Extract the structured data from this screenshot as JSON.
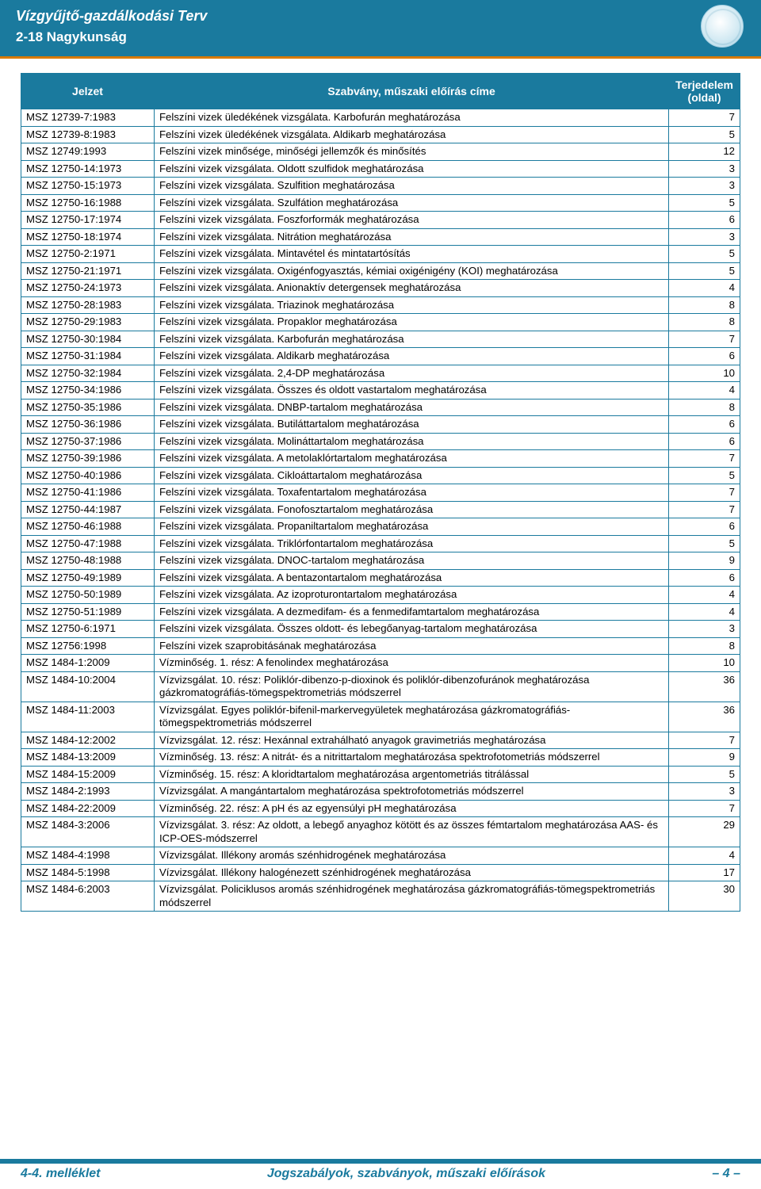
{
  "colors": {
    "primary": "#1a7a9e",
    "accent": "#d97a00",
    "text": "#000000",
    "background": "#ffffff"
  },
  "header": {
    "title": "Vízgyűjtő-gazdálkodási Terv",
    "subtitle": "2-18 Nagykunság"
  },
  "table": {
    "columns": [
      "Jelzet",
      "Szabvány, műszaki előírás címe",
      "Terjedelem (oldal)"
    ],
    "rows": [
      [
        "MSZ 12739-7:1983",
        "Felszíni vizek üledékének vizsgálata. Karbofurán meghatározása",
        "7"
      ],
      [
        "MSZ 12739-8:1983",
        "Felszíni vizek üledékének vizsgálata. Aldikarb meghatározása",
        "5"
      ],
      [
        "MSZ 12749:1993",
        "Felszíni vizek minősége, minőségi jellemzők és minősítés",
        "12"
      ],
      [
        "MSZ 12750-14:1973",
        "Felszíni vizek vizsgálata. Oldott szulfidok meghatározása",
        "3"
      ],
      [
        "MSZ 12750-15:1973",
        "Felszíni vizek vizsgálata. Szulfition meghatározása",
        "3"
      ],
      [
        "MSZ 12750-16:1988",
        "Felszíni vizek vizsgálata. Szulfátion meghatározása",
        "5"
      ],
      [
        "MSZ 12750-17:1974",
        "Felszíni vizek vizsgálata. Foszforformák meghatározása",
        "6"
      ],
      [
        "MSZ 12750-18:1974",
        "Felszíni vizek vizsgálata. Nitrátion meghatározása",
        "3"
      ],
      [
        "MSZ 12750-2:1971",
        "Felszíni vizek vizsgálata. Mintavétel és mintatartósítás",
        "5"
      ],
      [
        "MSZ 12750-21:1971",
        "Felszíni vizek vizsgálata. Oxigénfogyasztás, kémiai oxigénigény (KOI) meghatározása",
        "5"
      ],
      [
        "MSZ 12750-24:1973",
        "Felszíni vizek vizsgálata. Anionaktív detergensek meghatározása",
        "4"
      ],
      [
        "MSZ 12750-28:1983",
        "Felszíni vizek vizsgálata. Triazinok meghatározása",
        "8"
      ],
      [
        "MSZ 12750-29:1983",
        "Felszíni vizek vizsgálata. Propaklor meghatározása",
        "8"
      ],
      [
        "MSZ 12750-30:1984",
        "Felszíni vizek vizsgálata. Karbofurán meghatározása",
        "7"
      ],
      [
        "MSZ 12750-31:1984",
        "Felszíni vizek vizsgálata. Aldikarb meghatározása",
        "6"
      ],
      [
        "MSZ 12750-32:1984",
        "Felszíni vizek vizsgálata. 2,4-DP meghatározása",
        "10"
      ],
      [
        "MSZ 12750-34:1986",
        "Felszíni vizek vizsgálata. Összes és oldott vastartalom meghatározása",
        "4"
      ],
      [
        "MSZ 12750-35:1986",
        "Felszíni vizek vizsgálata. DNBP-tartalom meghatározása",
        "8"
      ],
      [
        "MSZ 12750-36:1986",
        "Felszíni vizek vizsgálata. Butiláttartalom meghatározása",
        "6"
      ],
      [
        "MSZ 12750-37:1986",
        "Felszíni vizek vizsgálata. Molináttartalom meghatározása",
        "6"
      ],
      [
        "MSZ 12750-39:1986",
        "Felszíni vizek vizsgálata. A metolaklórtartalom meghatározása",
        "7"
      ],
      [
        "MSZ 12750-40:1986",
        "Felszíni vizek vizsgálata. Cikloáttartalom meghatározása",
        "5"
      ],
      [
        "MSZ 12750-41:1986",
        "Felszíni vizek vizsgálata. Toxafentartalom meghatározása",
        "7"
      ],
      [
        "MSZ 12750-44:1987",
        "Felszíni vizek vizsgálata. Fonofosztartalom meghatározása",
        "7"
      ],
      [
        "MSZ 12750-46:1988",
        "Felszíni vizek vizsgálata. Propaniltartalom meghatározása",
        "6"
      ],
      [
        "MSZ 12750-47:1988",
        "Felszíni vizek vizsgálata. Triklórfontartalom meghatározása",
        "5"
      ],
      [
        "MSZ 12750-48:1988",
        "Felszíni vizek vizsgálata. DNOC-tartalom meghatározása",
        "9"
      ],
      [
        "MSZ 12750-49:1989",
        "Felszíni vizek vizsgálata. A bentazontartalom meghatározása",
        "6"
      ],
      [
        "MSZ 12750-50:1989",
        "Felszíni vizek vizsgálata. Az izoproturontartalom meghatározása",
        "4"
      ],
      [
        "MSZ 12750-51:1989",
        "Felszíni vizek vizsgálata. A dezmedifam- és a fenmedifamtartalom meghatározása",
        "4"
      ],
      [
        "MSZ 12750-6:1971",
        "Felszíni vizek vizsgálata. Összes oldott- és lebegőanyag-tartalom meghatározása",
        "3"
      ],
      [
        "MSZ 12756:1998",
        "Felszíni vizek szaprobitásának meghatározása",
        "8"
      ],
      [
        "MSZ 1484-1:2009",
        "Vízminőség. 1. rész: A fenolindex meghatározása",
        "10"
      ],
      [
        "MSZ 1484-10:2004",
        "Vízvizsgálat. 10. rész: Poliklór-dibenzo-p-dioxinok és poliklór-dibenzofuránok meghatározása gázkromatográfiás-tömegspektrometriás módszerrel",
        "36"
      ],
      [
        "MSZ 1484-11:2003",
        "Vízvizsgálat. Egyes poliklór-bifenil-markervegyületek meghatározása gázkromatográfiás-tömegspektrometriás módszerrel",
        "36"
      ],
      [
        "MSZ 1484-12:2002",
        "Vízvizsgálat. 12. rész: Hexánnal extrahálható anyagok gravimetriás meghatározása",
        "7"
      ],
      [
        "MSZ 1484-13:2009",
        "Vízminőség. 13. rész: A nitrát- és a nitrittartalom meghatározása spektrofotometriás módszerrel",
        "9"
      ],
      [
        "MSZ 1484-15:2009",
        "Vízminőség. 15. rész: A kloridtartalom meghatározása argentometriás titrálással",
        "5"
      ],
      [
        "MSZ 1484-2:1993",
        "Vízvizsgálat. A mangántartalom meghatározása spektrofotometriás módszerrel",
        "3"
      ],
      [
        "MSZ 1484-22:2009",
        "Vízminőség. 22. rész: A pH és az egyensúlyi pH meghatározása",
        "7"
      ],
      [
        "MSZ 1484-3:2006",
        "Vízvizsgálat. 3. rész: Az oldott, a lebegő anyaghoz kötött és az összes fémtartalom meghatározása AAS- és ICP-OES-módszerrel",
        "29"
      ],
      [
        "MSZ 1484-4:1998",
        "Vízvizsgálat. Illékony aromás szénhidrogének meghatározása",
        "4"
      ],
      [
        "MSZ 1484-5:1998",
        "Vízvizsgálat. Illékony halogénezett szénhidrogének meghatározása",
        "17"
      ],
      [
        "MSZ 1484-6:2003",
        "Vízvizsgálat. Policiklusos aromás szénhidrogének meghatározása gázkromatográfiás-tömegspektrometriás módszerrel",
        "30"
      ]
    ]
  },
  "footer": {
    "left": "4-4. melléklet",
    "center": "Jogszabályok, szabványok, műszaki előírások",
    "right": "– 4 –"
  }
}
